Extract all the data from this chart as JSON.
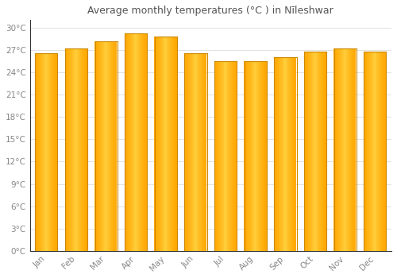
{
  "title": "Average monthly temperatures (°C ) in Nīleshwar",
  "months": [
    "Jan",
    "Feb",
    "Mar",
    "Apr",
    "May",
    "Jun",
    "Jul",
    "Aug",
    "Sep",
    "Oct",
    "Nov",
    "Dec"
  ],
  "values": [
    26.5,
    27.2,
    28.2,
    29.2,
    28.8,
    26.5,
    25.5,
    25.5,
    26.0,
    26.8,
    27.2,
    26.8
  ],
  "bar_color_main": "#FFA500",
  "bar_color_light": "#FFD060",
  "background_color": "#FFFFFF",
  "grid_color": "#DDDDDD",
  "text_color": "#888888",
  "title_color": "#555555",
  "ylim": [
    0,
    31
  ],
  "yticks": [
    0,
    3,
    6,
    9,
    12,
    15,
    18,
    21,
    24,
    27,
    30
  ],
  "ytick_labels": [
    "0°C",
    "3°C",
    "6°C",
    "9°C",
    "12°C",
    "15°C",
    "18°C",
    "21°C",
    "24°C",
    "27°C",
    "30°C"
  ]
}
